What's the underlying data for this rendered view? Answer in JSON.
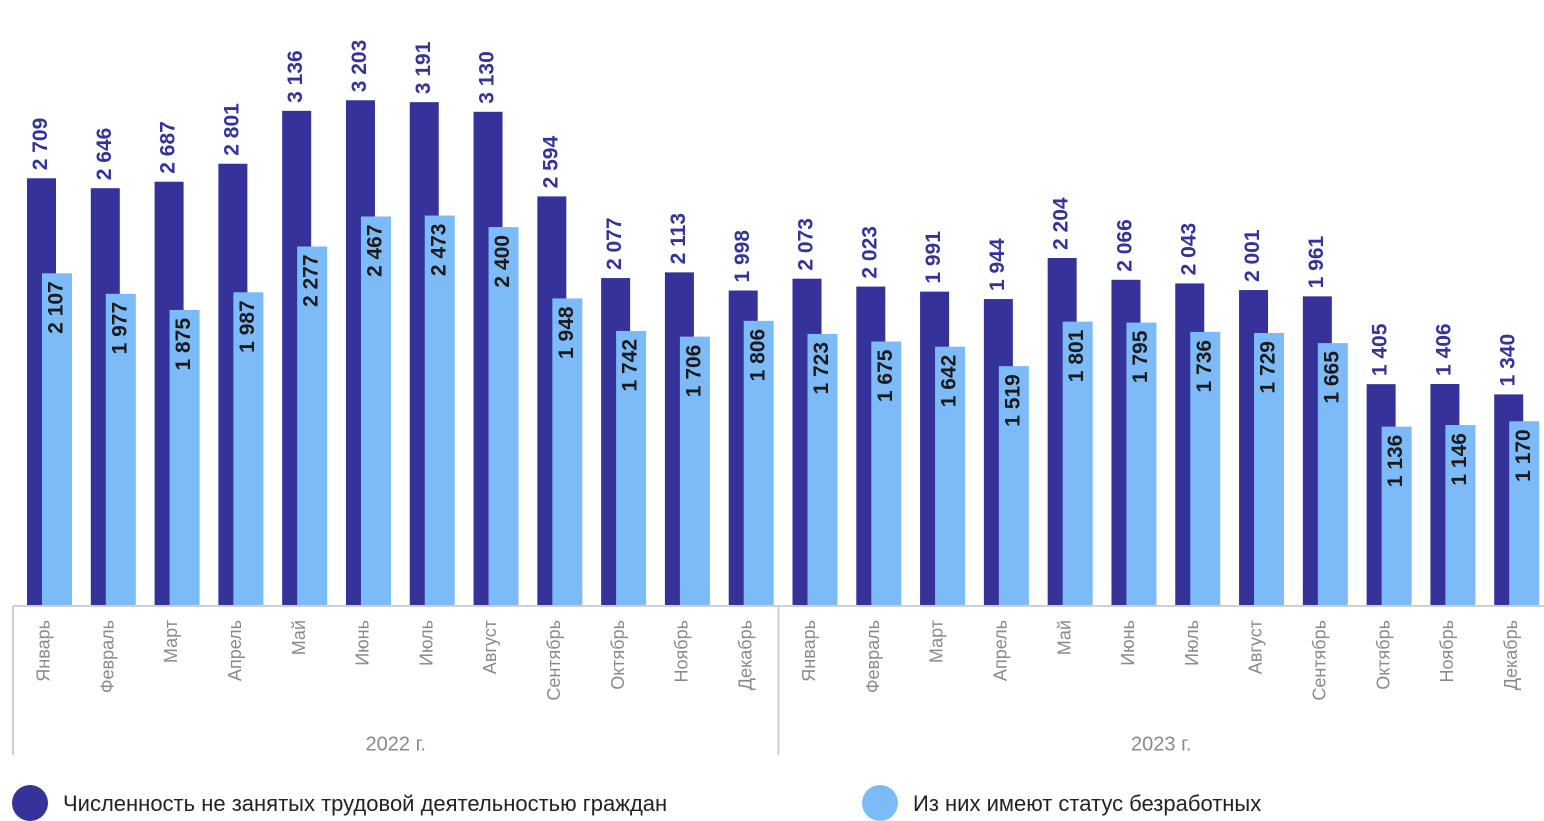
{
  "chart_data": {
    "type": "bar",
    "categories": [
      "Январь",
      "Февраль",
      "Март",
      "Апрель",
      "Май",
      "Июнь",
      "Июль",
      "Август",
      "Сентябрь",
      "Октябрь",
      "Ноябрь",
      "Декабрь",
      "Январь",
      "Февраль",
      "Март",
      "Апрель",
      "Май",
      "Июнь",
      "Июль",
      "Август",
      "Сентябрь",
      "Октябрь",
      "Ноябрь",
      "Декабрь"
    ],
    "groups": [
      "2022 г.",
      "2023 г."
    ],
    "series": [
      {
        "name": "Численность не занятых трудовой деятельностью граждан",
        "color": "#35329a",
        "values": [
          2709,
          2646,
          2687,
          2801,
          3136,
          3203,
          3191,
          3130,
          2594,
          2077,
          2113,
          1998,
          2073,
          2023,
          1991,
          1944,
          2204,
          2066,
          2043,
          2001,
          1961,
          1405,
          1406,
          1340
        ],
        "value_labels": [
          "2 709",
          "2 646",
          "2 687",
          "2 801",
          "3 136",
          "3 203",
          "3 191",
          "3 130",
          "2 594",
          "2 077",
          "2 113",
          "1 998",
          "2 073",
          "2 023",
          "1 991",
          "1 944",
          "2 204",
          "2 066",
          "2 043",
          "2 001",
          "1 961",
          "1 405",
          "1 406",
          "1 340"
        ]
      },
      {
        "name": "Из них имеют статус безработных",
        "color": "#7dbbf8",
        "values": [
          2107,
          1977,
          1875,
          1987,
          2277,
          2467,
          2473,
          2400,
          1948,
          1742,
          1706,
          1806,
          1723,
          1675,
          1642,
          1519,
          1801,
          1795,
          1736,
          1729,
          1665,
          1136,
          1146,
          1170
        ],
        "value_labels": [
          "2 107",
          "1 977",
          "1 875",
          "1 987",
          "2 277",
          "2 467",
          "2 473",
          "2 400",
          "1 948",
          "1 742",
          "1 706",
          "1 806",
          "1 723",
          "1 675",
          "1 642",
          "1 519",
          "1 801",
          "1 795",
          "1 736",
          "1 729",
          "1 665",
          "1 136",
          "1 146",
          "1 170"
        ]
      }
    ],
    "ylim": [
      0,
      3800
    ],
    "legend": "bottom"
  }
}
